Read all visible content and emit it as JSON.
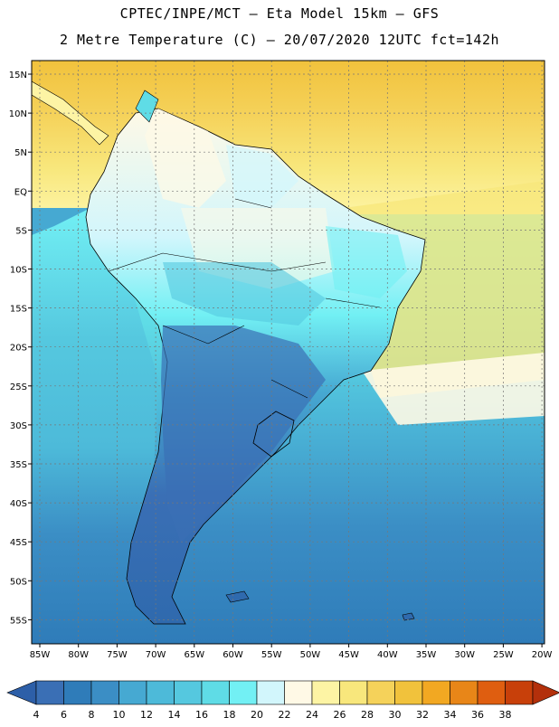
{
  "header": {
    "line1": "CPTEC/INPE/MCT –  Eta Model 15km – GFS",
    "line2": "2 Metre Temperature (C) – 20/07/2020 12UTC fct=142h"
  },
  "map": {
    "lat_labels": [
      "15N",
      "10N",
      "5N",
      "EQ",
      "5S",
      "10S",
      "15S",
      "20S",
      "25S",
      "30S",
      "35S",
      "40S",
      "45S",
      "50S",
      "55S"
    ],
    "lon_labels": [
      "85W",
      "80W",
      "75W",
      "70W",
      "65W",
      "60W",
      "55W",
      "50W",
      "45W",
      "40W",
      "35W",
      "30W",
      "25W",
      "20W"
    ]
  },
  "colorbar": {
    "ticks": [
      "4",
      "6",
      "8",
      "10",
      "12",
      "14",
      "16",
      "18",
      "20",
      "22",
      "24",
      "26",
      "28",
      "30",
      "32",
      "34",
      "36",
      "38"
    ],
    "colors": [
      "#3a6fb5",
      "#2f7cb9",
      "#3b8ec5",
      "#46a9d2",
      "#4dbad9",
      "#55c8df",
      "#5fdce6",
      "#72f0f4",
      "#d2f6fc",
      "#fff9e6",
      "#fdf4a4",
      "#f8e77c",
      "#f5d25a",
      "#f1c23c",
      "#f2a822",
      "#e88618",
      "#df5e10",
      "#c8400a"
    ],
    "under_color": "#2d5fa8",
    "over_color": "#b3300b"
  }
}
